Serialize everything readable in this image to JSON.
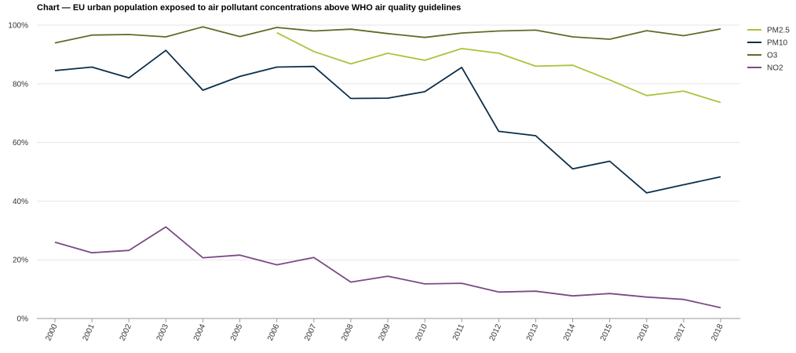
{
  "chart_data": {
    "type": "line",
    "title": "Chart — EU urban population exposed to air pollutant concentrations above WHO air quality guidelines",
    "xlabel": "",
    "ylabel": "",
    "ylim": [
      0,
      100
    ],
    "y_ticks": [
      "0%",
      "20%",
      "40%",
      "60%",
      "80%",
      "100%"
    ],
    "categories": [
      "2000",
      "2001",
      "2002",
      "2003",
      "2004",
      "2005",
      "2006",
      "2007",
      "2008",
      "2009",
      "2010",
      "2011",
      "2012",
      "2013",
      "2014",
      "2015",
      "2016",
      "2017",
      "2018"
    ],
    "legend_position": "right",
    "grid": true,
    "series": [
      {
        "name": "PM2.5",
        "color": "#a6c63b",
        "values": [
          null,
          null,
          null,
          null,
          null,
          null,
          97.4,
          91.0,
          86.8,
          90.4,
          88.0,
          92.0,
          90.4,
          86.0,
          86.3,
          81.3,
          76.0,
          77.5,
          73.6
        ]
      },
      {
        "name": "PM10",
        "color": "#0b2e4a",
        "values": [
          84.5,
          85.7,
          82.0,
          91.4,
          77.8,
          82.5,
          85.7,
          85.9,
          75.0,
          75.1,
          77.3,
          85.6,
          63.8,
          62.3,
          51.0,
          53.6,
          42.8,
          45.6,
          48.3
        ]
      },
      {
        "name": "O3",
        "color": "#5c6e27",
        "values": [
          93.9,
          96.6,
          96.8,
          96.0,
          99.4,
          96.1,
          99.2,
          98.0,
          98.6,
          97.1,
          95.8,
          97.3,
          98.0,
          98.3,
          96.0,
          95.2,
          98.1,
          96.4,
          98.7
        ]
      },
      {
        "name": "NO2",
        "color": "#7b4a86",
        "values": [
          26.0,
          22.4,
          23.2,
          31.2,
          20.7,
          21.6,
          18.3,
          20.8,
          12.4,
          14.4,
          11.8,
          12.0,
          9.0,
          9.3,
          7.7,
          8.5,
          7.3,
          6.5,
          3.7
        ]
      }
    ]
  }
}
